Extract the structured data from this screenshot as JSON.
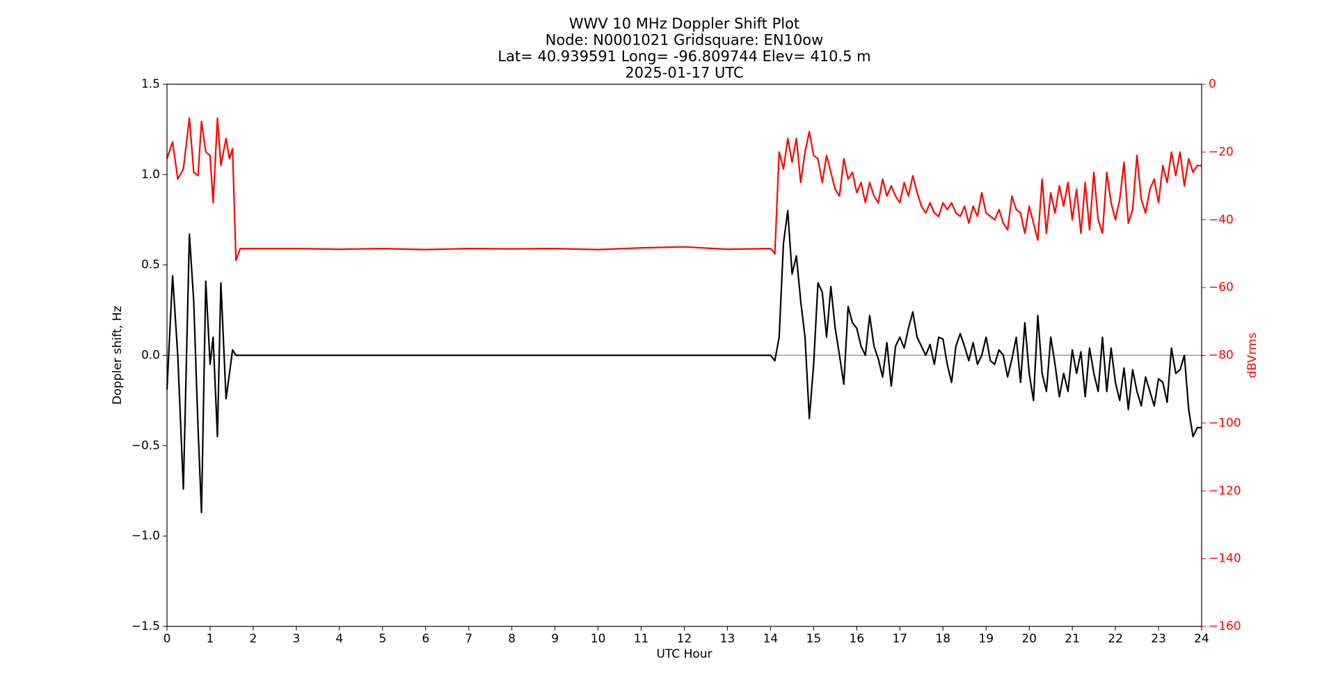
{
  "chart_data": {
    "type": "line",
    "title_lines": [
      "WWV 10 MHz Doppler Shift Plot",
      "Node:  N0001021     Gridsquare:  EN10ow",
      "Lat= 40.939591    Long= -96.809744    Elev= 410.5 m",
      "2025-01-17  UTC"
    ],
    "xlabel": "UTC Hour",
    "ylabel": "Doppler shift, Hz",
    "y2label": "dBVrms",
    "xlim": [
      0,
      24
    ],
    "xticks": [
      0,
      1,
      2,
      3,
      4,
      5,
      6,
      7,
      8,
      9,
      10,
      11,
      12,
      13,
      14,
      15,
      16,
      17,
      18,
      19,
      20,
      21,
      22,
      23,
      24
    ],
    "ylim": [
      -1.5,
      1.5
    ],
    "yticks": [
      {
        "value": -1.5,
        "label": "−1.5"
      },
      {
        "value": -1.0,
        "label": "−1.0"
      },
      {
        "value": -0.5,
        "label": "−0.5"
      },
      {
        "value": 0,
        "label": "0.0"
      },
      {
        "value": 0.5,
        "label": "0.5"
      },
      {
        "value": 1.0,
        "label": "1.0"
      },
      {
        "value": 1.5,
        "label": "1.5"
      }
    ],
    "y2lim": [
      -160,
      0
    ],
    "y2ticks": [
      {
        "value": -160,
        "label": "−160"
      },
      {
        "value": -140,
        "label": "−140"
      },
      {
        "value": -120,
        "label": "−120"
      },
      {
        "value": -100,
        "label": "−100"
      },
      {
        "value": -80,
        "label": "−80"
      },
      {
        "value": -60,
        "label": "−60"
      },
      {
        "value": -40,
        "label": "−40"
      },
      {
        "value": -20,
        "label": "−20"
      },
      0
    ],
    "y2color": "#ff0000",
    "hline": {
      "value": 0,
      "color": "#999999"
    },
    "x": [
      0,
      0.13,
      0.25,
      0.38,
      0.52,
      0.62,
      0.72,
      0.8,
      0.9,
      1.0,
      1.07,
      1.17,
      1.25,
      1.37,
      1.45,
      1.52,
      1.6,
      1.7,
      2,
      3,
      4,
      5,
      6,
      7,
      8,
      9,
      10,
      11,
      12,
      13,
      14.0,
      14.1,
      14.2,
      14.3,
      14.4,
      14.5,
      14.6,
      14.7,
      14.8,
      14.9,
      15.0,
      15.1,
      15.2,
      15.3,
      15.4,
      15.5,
      15.6,
      15.7,
      15.8,
      15.9,
      16.0,
      16.1,
      16.2,
      16.3,
      16.4,
      16.5,
      16.6,
      16.7,
      16.8,
      16.9,
      17.0,
      17.1,
      17.2,
      17.3,
      17.4,
      17.5,
      17.6,
      17.7,
      17.8,
      17.9,
      18.0,
      18.1,
      18.2,
      18.3,
      18.4,
      18.5,
      18.6,
      18.7,
      18.8,
      18.9,
      19.0,
      19.1,
      19.2,
      19.3,
      19.4,
      19.5,
      19.6,
      19.7,
      19.8,
      19.9,
      20.0,
      20.1,
      20.2,
      20.3,
      20.4,
      20.5,
      20.6,
      20.7,
      20.8,
      20.9,
      21.0,
      21.1,
      21.2,
      21.3,
      21.4,
      21.5,
      21.6,
      21.7,
      21.8,
      21.9,
      22.0,
      22.1,
      22.2,
      22.3,
      22.4,
      22.5,
      22.6,
      22.7,
      22.8,
      22.9,
      23.0,
      23.1,
      23.2,
      23.3,
      23.4,
      23.5,
      23.6,
      23.7,
      23.8,
      23.9,
      24.0
    ],
    "series": [
      {
        "color": "#000000",
        "values": [
          -0.19,
          0.44,
          0.0,
          -0.74,
          0.67,
          0.3,
          -0.4,
          -0.87,
          0.41,
          -0.05,
          0.1,
          -0.45,
          0.4,
          -0.24,
          -0.1,
          0.03,
          0.0,
          0.0,
          0,
          0,
          0,
          0,
          0,
          0,
          0,
          0,
          0,
          0,
          0,
          0,
          0,
          -0.03,
          0.1,
          0.62,
          0.8,
          0.45,
          0.55,
          0.3,
          0.1,
          -0.35,
          -0.05,
          0.4,
          0.35,
          0.1,
          0.38,
          0.15,
          0.0,
          -0.16,
          0.27,
          0.18,
          0.15,
          0.05,
          0.0,
          0.22,
          0.05,
          -0.02,
          -0.12,
          0.07,
          -0.17,
          0.05,
          0.1,
          0.04,
          0.15,
          0.24,
          0.1,
          0.05,
          0.0,
          0.06,
          -0.05,
          0.1,
          0.09,
          -0.05,
          -0.15,
          0.05,
          0.12,
          0.05,
          -0.03,
          0.07,
          -0.05,
          0.0,
          0.1,
          -0.03,
          -0.05,
          0.03,
          0.0,
          -0.12,
          -0.02,
          0.1,
          -0.15,
          0.18,
          -0.1,
          -0.25,
          0.22,
          -0.1,
          -0.2,
          0.1,
          -0.05,
          -0.23,
          -0.1,
          -0.2,
          0.03,
          -0.1,
          0.02,
          -0.23,
          0.04,
          -0.1,
          -0.2,
          0.1,
          -0.2,
          0.04,
          -0.15,
          -0.25,
          -0.07,
          -0.3,
          -0.08,
          -0.2,
          -0.28,
          -0.12,
          -0.2,
          -0.28,
          -0.13,
          -0.15,
          -0.26,
          0.04,
          -0.1,
          -0.08,
          0.0,
          -0.3,
          -0.45,
          -0.4,
          -0.4
        ]
      },
      {
        "color": "#ff0000",
        "axis": "y2",
        "values": [
          -22,
          -17,
          -28,
          -25,
          -10,
          -26,
          -27,
          -11,
          -20,
          -21,
          -35,
          -10,
          -24,
          -16,
          -22,
          -19,
          -52,
          -48.5,
          -48.5,
          -48.5,
          -48.7,
          -48.5,
          -48.8,
          -48.5,
          -48.6,
          -48.5,
          -48.8,
          -48.3,
          -48,
          -48.7,
          -48.5,
          -50,
          -20,
          -25,
          -16,
          -23,
          -16,
          -29,
          -20,
          -14,
          -21,
          -22,
          -29,
          -21,
          -26,
          -31,
          -33,
          -22,
          -28,
          -26,
          -32,
          -29,
          -35,
          -29,
          -33,
          -35,
          -28,
          -33,
          -30,
          -33,
          -35,
          -29,
          -33,
          -27,
          -32,
          -36,
          -38,
          -35,
          -38,
          -39,
          -35,
          -37,
          -35,
          -38,
          -39,
          -36,
          -41,
          -36,
          -39,
          -32,
          -38,
          -39,
          -40,
          -37,
          -41,
          -43,
          -33,
          -37,
          -38,
          -44,
          -36,
          -41,
          -46,
          -28,
          -44,
          -32,
          -38,
          -30,
          -36,
          -29,
          -40,
          -31,
          -44,
          -29,
          -43,
          -26,
          -40,
          -44,
          -26,
          -35,
          -40,
          -34,
          -23,
          -41,
          -37,
          -21,
          -34,
          -38,
          -31,
          -28,
          -35,
          -24,
          -29,
          -20,
          -27,
          -20,
          -30,
          -22,
          -26,
          -24,
          -24
        ]
      }
    ]
  }
}
